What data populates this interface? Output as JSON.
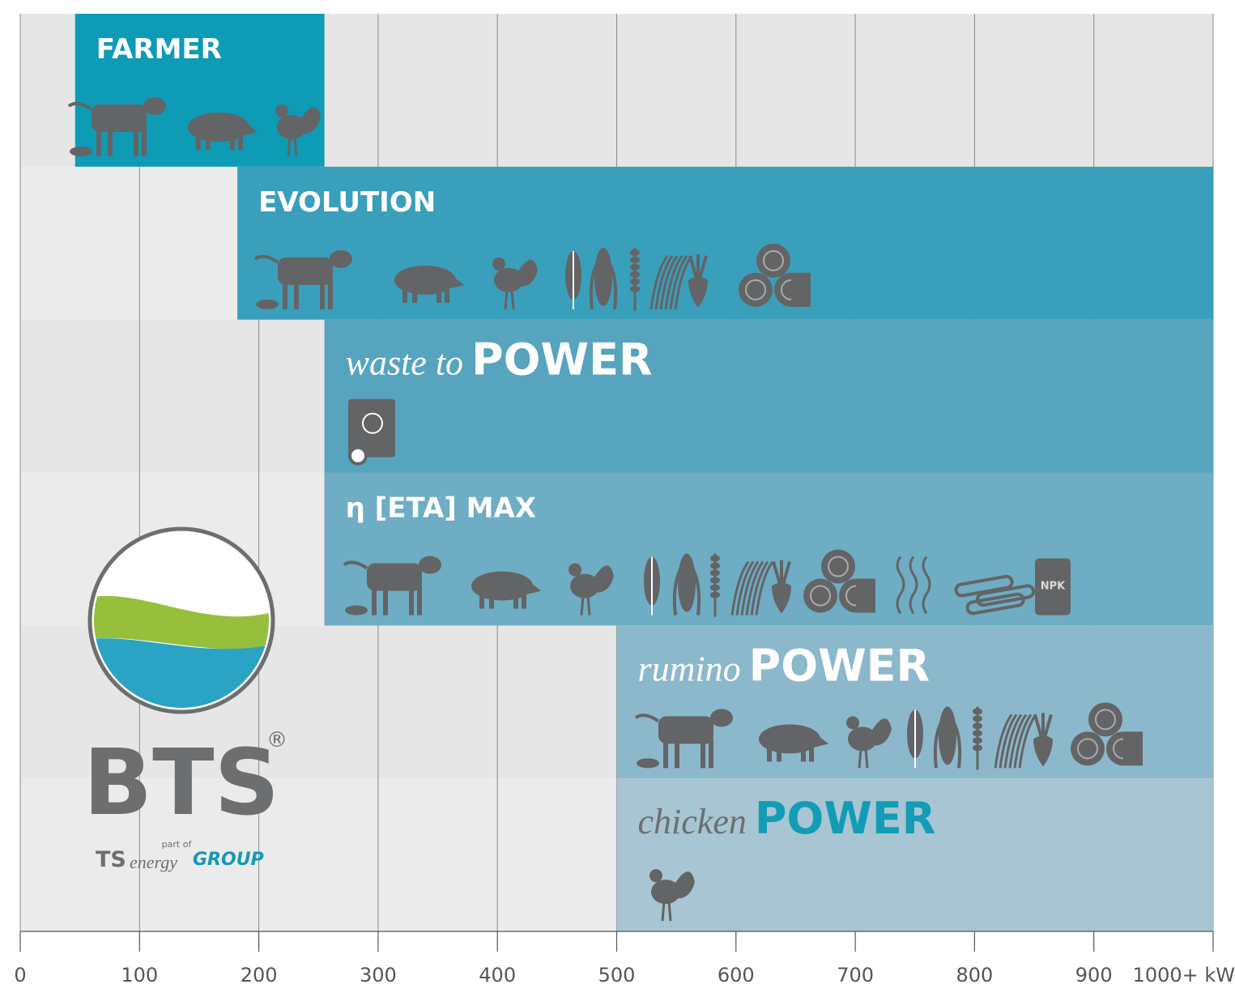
{
  "chart_data": {
    "type": "range-bar",
    "bars": [
      {
        "name": "FARMER",
        "start": 46,
        "end": 255,
        "color": "#0e9bb5",
        "text_color": "#ffffff"
      },
      {
        "name": "EVOLUTION",
        "start": 182,
        "end": 1000,
        "color": "#3a9fba",
        "text_color": "#ffffff"
      },
      {
        "prefix": "waste to",
        "name": "POWER",
        "start": 255,
        "end": 1000,
        "color": "#56a4bd",
        "text_color": "#ffffff"
      },
      {
        "name": "η [ETA] MAX",
        "start": 255,
        "end": 1000,
        "color": "#6eadc3",
        "text_color": "#ffffff"
      },
      {
        "prefix": "rumino",
        "name": "POWER",
        "start": 500,
        "end": 1000,
        "color": "#8cb8cb",
        "text_color": "#ffffff"
      },
      {
        "prefix": "chicken",
        "name": "POWER",
        "start": 500,
        "end": 1000,
        "color": "#a7c5d2",
        "text_color": "#129cb5"
      }
    ],
    "xlim": [
      0,
      1000
    ],
    "xticks": [
      0,
      100,
      200,
      300,
      400,
      500,
      600,
      700,
      800,
      900,
      {
        "value": 1000,
        "label": "1000+ kW"
      }
    ],
    "grid": true
  },
  "icon_text": "NPK",
  "logo": {
    "brand": "BTS",
    "registered": "®",
    "part_of": "part of",
    "group_ts": "TS",
    "group_energy": "energy",
    "group_name": "GROUP"
  }
}
